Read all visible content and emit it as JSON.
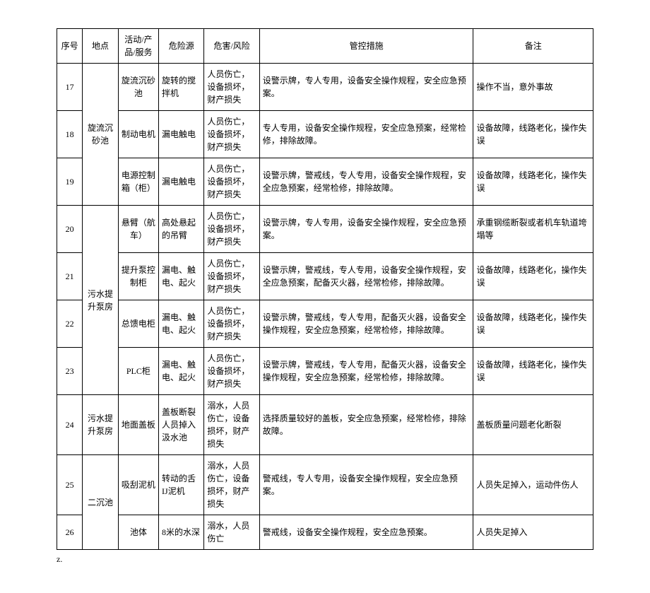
{
  "columns": [
    "序号",
    "地点",
    "活动/产品/服务",
    "危险源",
    "危害/风险",
    "管控措施",
    "备注"
  ],
  "rows": [
    {
      "seq": "17",
      "loc_group": "旋流沉砂池",
      "loc_span": 3,
      "act": "旋流沉砂池",
      "haz": "旋转的搅拌机",
      "risk": "人员伤亡，设备损坏，财产损失",
      "ctrl": "设警示牌，专人专用，设备安全操作规程，安全应急预案。",
      "note": "操作不当，意外事故"
    },
    {
      "seq": "18",
      "act": "制动电机",
      "haz": "漏电触电",
      "risk": "人员伤亡，设备损坏，财产损失",
      "ctrl": "专人专用，设备安全操作规程，安全应急预案，经常检修，排除故障。",
      "note": "设备故障，线路老化，操作失误"
    },
    {
      "seq": "19",
      "act": "电源控制箱（柜）",
      "haz": "漏电触电",
      "risk": "人员伤亡，设备损坏，财产损失",
      "ctrl": "设警示牌，警戒线，专人专用，设备安全操作规程，安全应急预案，经常检修，排除故障。",
      "note": "设备故障，线路老化，操作失误"
    },
    {
      "seq": "20",
      "loc_group": "污水提升泵房",
      "loc_span": 4,
      "act": "悬臂（航车）",
      "haz": "高处悬起的吊臂",
      "risk": "人员伤亡，设备损坏，财产损失",
      "ctrl": "设警示牌，专人专用，设备安全操作规程，安全应急预案。",
      "note": "承重钢缆断裂或者机车轨道垮塌等"
    },
    {
      "seq": "21",
      "act": "提升泵控制柜",
      "haz": "漏电、触电、起火",
      "risk": "人员伤亡，设备损坏，财产损失",
      "ctrl": "设警示牌，警戒线，专人专用，设备安全操作规程，安全应急预案，配备灭火器，经常检修，排除故障。",
      "note": "设备故障，线路老化，操作失误"
    },
    {
      "seq": "22",
      "act": "总馈电柜",
      "haz": "漏电、触电、起火",
      "risk": "人员伤亡，设备损坏，财产损失",
      "ctrl": "设警示牌，警戒线，专人专用，配备灭火器，设备安全操作规程，安全应急预案，经常检修，排除故障。",
      "note": "设备故障，线路老化，操作失误"
    },
    {
      "seq": "23",
      "act": "PLC柜",
      "haz": "漏电、触电、起火",
      "risk": "人员伤亡，设备损坏，财产损失",
      "ctrl": "设警示牌，警戒线，专人专用，配备灭火器，设备安全操作规程，安全应急预案，经常检修，排除故障。",
      "note": "设备故障，线路老化，操作失误"
    },
    {
      "seq": "24",
      "loc_group": "污水提升泵房",
      "loc_span": 1,
      "act": "地面盖板",
      "haz": "盖板断裂人员掉入汲水池",
      "risk": "溺水，人员伤亡，设备损坏，财产损失",
      "ctrl": "选择质量较好的盖板，安全应急预案，经常检修，排除故障。",
      "note": "盖板质量问题老化断裂"
    },
    {
      "seq": "25",
      "loc_group": "二沉池",
      "loc_span": 2,
      "act": "吸刮泥机",
      "haz": "转动的舌IJ泥机",
      "risk": "溺水，人员伤亡，设备损坏，财产损失",
      "ctrl": "警戒线，专人专用，设备安全操作规程，安全应急预案。",
      "note": "人员失足掉入，运动件伤人"
    },
    {
      "seq": "26",
      "act": "池体",
      "haz": "8米的水深",
      "risk": "溺水，人员伤亡",
      "ctrl": "警戒线，设备安全操作规程，安全应急预案。",
      "note": "人员失足掉入"
    }
  ],
  "footer": "z."
}
